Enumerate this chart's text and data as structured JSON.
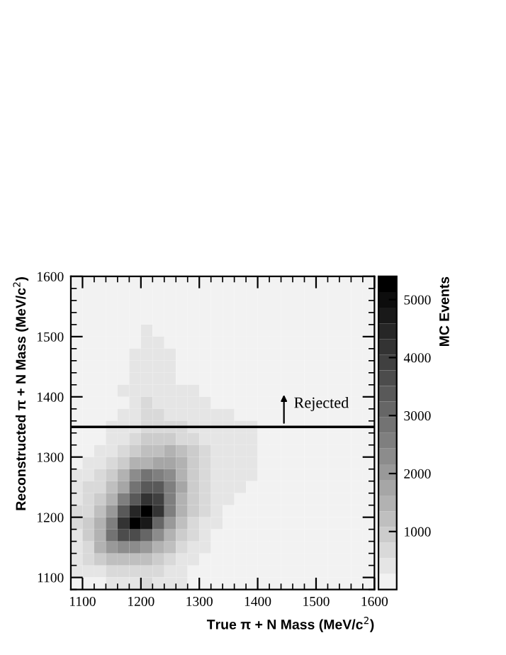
{
  "chart_data": {
    "type": "heatmap",
    "xlabel": "True π + N Mass (MeV/c$^{2}$)",
    "ylabel": "Reconstructed π + N Mass (MeV/c$^{2}$)",
    "clabel": "MC Events",
    "xlim": [
      1080,
      1600
    ],
    "xticks": [
      1100,
      1200,
      1300,
      1400,
      1500,
      1600
    ],
    "ylim": [
      1080,
      1600
    ],
    "yticks": [
      1100,
      1200,
      1300,
      1400,
      1500,
      1600
    ],
    "clim": [
      0,
      5400
    ],
    "cticks": [
      1000,
      2000,
      3000,
      4000,
      5000
    ],
    "ref_lines": [
      {
        "axis": "y",
        "value": 1350,
        "color": "#000000"
      }
    ],
    "annotations": [
      {
        "text": "Rejected",
        "x": 1445,
        "y": 1350
      }
    ],
    "cells": [
      [
        0,
        0,
        0,
        0,
        0,
        0,
        0,
        0,
        0,
        0,
        0,
        0,
        0,
        0,
        0,
        0,
        0,
        0,
        0,
        0,
        0,
        0,
        0,
        0,
        0,
        0
      ],
      [
        0,
        0,
        0,
        0,
        0,
        0,
        0,
        0,
        0,
        0,
        0,
        0,
        0,
        0,
        0,
        0,
        0,
        0,
        0,
        0,
        0,
        0,
        0,
        0,
        0,
        0
      ],
      [
        0,
        0,
        0,
        0,
        0,
        0,
        0,
        0,
        0,
        0,
        0,
        0,
        0,
        0,
        0,
        0,
        0,
        0,
        0,
        0,
        0,
        0,
        0,
        0,
        0,
        0
      ],
      [
        0,
        0,
        0,
        0,
        0,
        0,
        0,
        0,
        0,
        0,
        0,
        0,
        0,
        0,
        0,
        0,
        0,
        0,
        0,
        0,
        0,
        0,
        0,
        0,
        0,
        0
      ],
      [
        0,
        0,
        0,
        0,
        0,
        0,
        400,
        0,
        0,
        0,
        0,
        0,
        0,
        0,
        0,
        0,
        0,
        0,
        0,
        0,
        0,
        0,
        0,
        0,
        0,
        0
      ],
      [
        0,
        0,
        0,
        0,
        0,
        0,
        400,
        400,
        0,
        0,
        0,
        0,
        0,
        0,
        0,
        0,
        0,
        0,
        0,
        0,
        0,
        0,
        0,
        0,
        0,
        0
      ],
      [
        0,
        0,
        0,
        0,
        0,
        350,
        450,
        400,
        350,
        0,
        0,
        0,
        0,
        0,
        0,
        0,
        0,
        0,
        0,
        0,
        0,
        0,
        0,
        0,
        0,
        0
      ],
      [
        0,
        0,
        0,
        0,
        0,
        400,
        400,
        400,
        400,
        0,
        0,
        0,
        0,
        0,
        0,
        0,
        0,
        0,
        0,
        0,
        0,
        0,
        0,
        0,
        0,
        0
      ],
      [
        0,
        0,
        0,
        0,
        0,
        400,
        400,
        400,
        400,
        0,
        0,
        0,
        0,
        0,
        0,
        0,
        0,
        0,
        0,
        0,
        0,
        0,
        0,
        0,
        0,
        0
      ],
      [
        0,
        0,
        0,
        0,
        300,
        300,
        500,
        300,
        300,
        300,
        300,
        0,
        0,
        0,
        0,
        0,
        0,
        0,
        0,
        0,
        0,
        0,
        0,
        0,
        0,
        0
      ],
      [
        0,
        0,
        0,
        0,
        0,
        400,
        700,
        500,
        500,
        400,
        400,
        300,
        0,
        0,
        0,
        0,
        0,
        0,
        0,
        0,
        0,
        0,
        0,
        0,
        0,
        0
      ],
      [
        0,
        0,
        0,
        0,
        300,
        400,
        700,
        600,
        500,
        400,
        400,
        400,
        300,
        300,
        0,
        0,
        0,
        0,
        0,
        0,
        0,
        0,
        0,
        0,
        0,
        0
      ],
      [
        0,
        0,
        0,
        300,
        400,
        500,
        700,
        800,
        700,
        600,
        500,
        500,
        400,
        400,
        300,
        300,
        0,
        0,
        0,
        0,
        0,
        0,
        0,
        0,
        0,
        0
      ],
      [
        0,
        0,
        0,
        400,
        500,
        700,
        900,
        1000,
        1000,
        800,
        600,
        500,
        400,
        400,
        300,
        300,
        0,
        0,
        0,
        0,
        0,
        0,
        0,
        0,
        0,
        0
      ],
      [
        0,
        0,
        400,
        500,
        700,
        1000,
        1200,
        1300,
        1400,
        1300,
        900,
        600,
        500,
        400,
        400,
        300,
        0,
        0,
        0,
        0,
        0,
        0,
        0,
        0,
        0,
        0
      ],
      [
        0,
        400,
        500,
        700,
        1000,
        1500,
        1600,
        1800,
        1700,
        1500,
        1000,
        600,
        500,
        400,
        400,
        300,
        0,
        0,
        0,
        0,
        0,
        0,
        0,
        0,
        0,
        0
      ],
      [
        300,
        500,
        700,
        900,
        1400,
        2200,
        2700,
        2600,
        2200,
        1600,
        1000,
        600,
        500,
        400,
        400,
        300,
        0,
        0,
        0,
        0,
        0,
        0,
        0,
        0,
        0,
        0
      ],
      [
        400,
        600,
        800,
        1200,
        1800,
        2700,
        3300,
        3500,
        2600,
        1700,
        1000,
        700,
        500,
        400,
        400,
        0,
        0,
        0,
        0,
        0,
        0,
        0,
        0,
        0,
        0,
        0
      ],
      [
        500,
        700,
        1000,
        1500,
        2500,
        3500,
        4300,
        3800,
        2600,
        1600,
        900,
        600,
        500,
        400,
        0,
        0,
        0,
        0,
        0,
        0,
        0,
        0,
        0,
        0,
        0,
        0
      ],
      [
        600,
        800,
        1200,
        1900,
        3300,
        4500,
        5300,
        4200,
        2500,
        1500,
        900,
        600,
        500,
        0,
        0,
        0,
        0,
        0,
        0,
        0,
        0,
        0,
        0,
        0,
        0,
        0
      ],
      [
        600,
        1000,
        1500,
        2600,
        4200,
        5300,
        4700,
        3200,
        2100,
        1300,
        800,
        500,
        400,
        0,
        0,
        0,
        0,
        0,
        0,
        0,
        0,
        0,
        0,
        0,
        0,
        0
      ],
      [
        500,
        900,
        1600,
        2800,
        3600,
        3700,
        3000,
        2200,
        1600,
        1000,
        700,
        500,
        0,
        0,
        0,
        0,
        0,
        0,
        0,
        0,
        0,
        0,
        0,
        0,
        0,
        0
      ],
      [
        400,
        800,
        1400,
        2000,
        2300,
        2300,
        2000,
        1600,
        1100,
        800,
        500,
        400,
        0,
        0,
        0,
        0,
        0,
        0,
        0,
        0,
        0,
        0,
        0,
        0,
        0,
        0
      ],
      [
        300,
        600,
        900,
        1100,
        1200,
        1300,
        1200,
        1000,
        700,
        500,
        400,
        0,
        0,
        0,
        0,
        0,
        0,
        0,
        0,
        0,
        0,
        0,
        0,
        0,
        0,
        0
      ],
      [
        300,
        400,
        500,
        600,
        700,
        800,
        800,
        600,
        500,
        400,
        0,
        0,
        0,
        0,
        0,
        0,
        0,
        0,
        0,
        0,
        0,
        0,
        0,
        0,
        0,
        0
      ],
      [
        0,
        0,
        0,
        300,
        400,
        500,
        600,
        500,
        400,
        300,
        0,
        0,
        0,
        0,
        0,
        0,
        0,
        0,
        0,
        0,
        0,
        0,
        0,
        0,
        0,
        0
      ]
    ]
  }
}
